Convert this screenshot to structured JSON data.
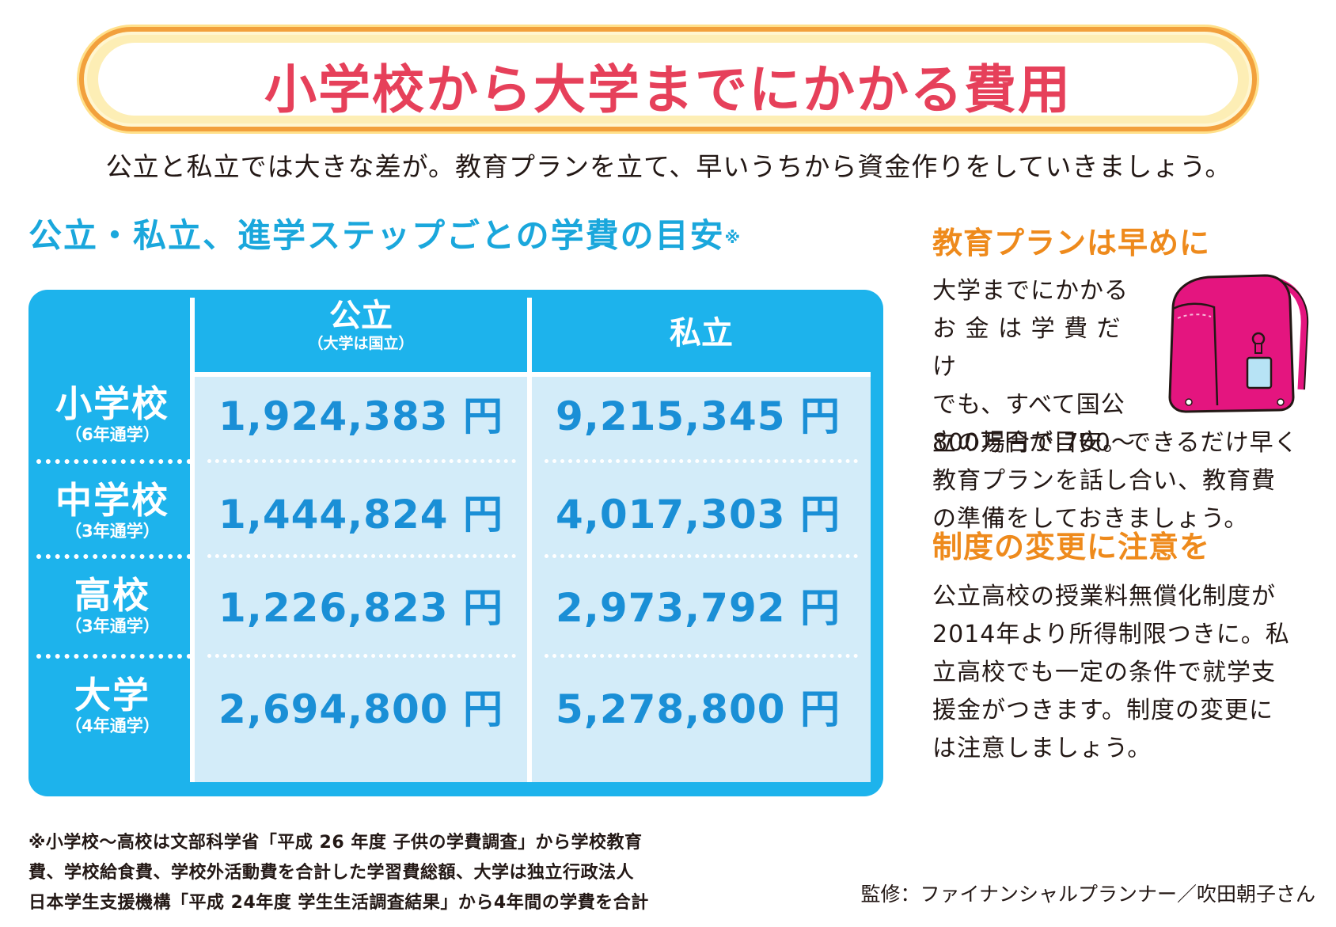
{
  "title": "小学校から大学までにかかる費用",
  "subtitle": "公立と私立では大きな差が。教育プランを立て、早いうちから資金作りをしていきましょう。",
  "section_title": "公立・私立、進学ステップごとの学費の目安",
  "section_title_mark": "※",
  "table": {
    "columns": [
      {
        "main": "公立",
        "sub": "（大学は国立）"
      },
      {
        "main": "私立",
        "sub": ""
      }
    ],
    "rows": [
      {
        "label": "小学校",
        "sub": "（6年通学）",
        "public": "1,924,383 円",
        "private": "9,215,345 円"
      },
      {
        "label": "中学校",
        "sub": "（3年通学）",
        "public": "1,444,824 円",
        "private": "4,017,303 円"
      },
      {
        "label": "高校",
        "sub": "（3年通学）",
        "public": "1,226,823 円",
        "private": "2,973,792 円"
      },
      {
        "label": "大学",
        "sub": "（4年通学）",
        "public": "2,694,800 円",
        "private": "5,278,800 円"
      }
    ]
  },
  "side": {
    "heading1": "教育プランは早めに",
    "para1_lines": [
      "大学までにかかる",
      "お 金 は 学 費 だ け",
      "でも、すべて国公",
      "立の場合で 700〜",
      "800万円が目安。できるだけ早く",
      "教育プランを話し合い、教育費",
      "の準備をしておきましょう。"
    ],
    "heading2": "制度の変更に注意を",
    "para2_lines": [
      "公立高校の授業料無償化制度が",
      "2014年より所得制限つきに。私",
      "立高校でも一定の条件で就学支",
      "援金がつきます。制度の変更に",
      "は注意しましょう。"
    ]
  },
  "footnote_lines": [
    "※小学校〜高校は文部科学省「平成 26 年度 子供の学費調査」から学校教育",
    "費、学校給食費、学校外活動費を合計した学習費総額、大学は独立行政法人",
    "日本学生支援機構「平成 24年度 学生生活調査結果」から4年間の学費を合計"
  ],
  "credit": "監修：ファイナンシャルプランナー／吹田朝子さん",
  "colors": {
    "title": "#e6405a",
    "accent_blue": "#1db3ec",
    "value_blue": "#1a8fd6",
    "orange": "#ee8a1c",
    "bag": "#e4157f"
  },
  "icons": {
    "illustration": "school-backpack-icon"
  }
}
